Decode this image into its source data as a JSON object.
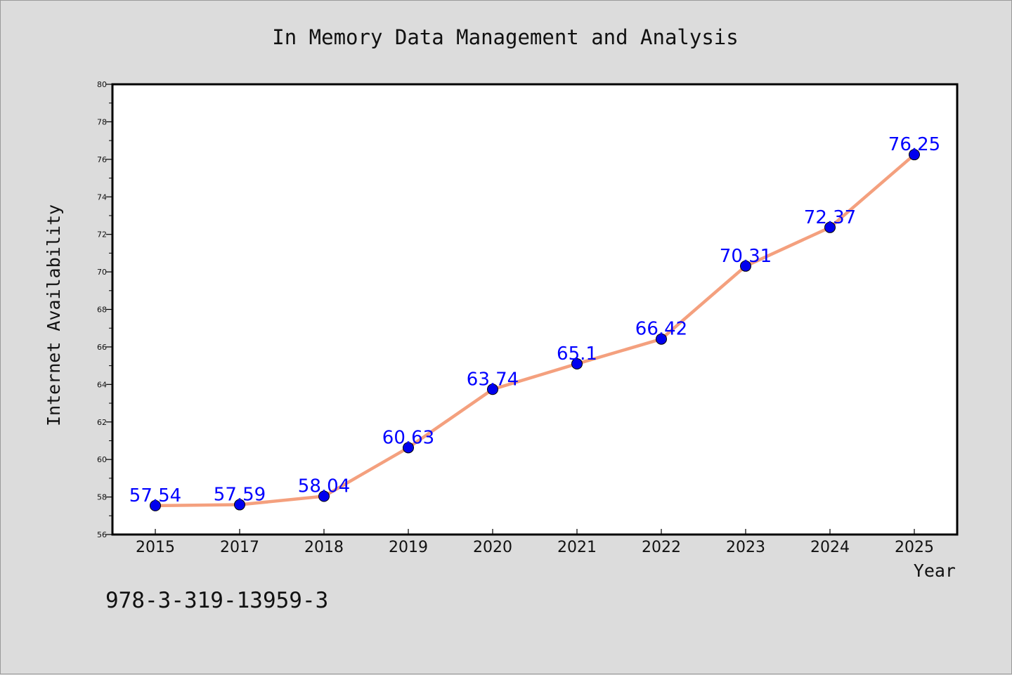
{
  "chart_data": {
    "type": "line",
    "title": "In Memory Data Management and Analysis",
    "xlabel": "Year",
    "ylabel": "Internet Availability",
    "categories": [
      "2015",
      "2017",
      "2018",
      "2019",
      "2020",
      "2021",
      "2022",
      "2023",
      "2024",
      "2025"
    ],
    "values": [
      57.54,
      57.59,
      58.04,
      60.63,
      63.74,
      65.1,
      66.42,
      70.31,
      72.37,
      76.25
    ],
    "data_labels": [
      "57.54",
      "57.59",
      "58.04",
      "60.63",
      "63.74",
      "65.1",
      "66.42",
      "70.31",
      "72.37",
      "76.25"
    ],
    "ylim": [
      56,
      80
    ],
    "yticks": [
      56,
      58,
      60,
      62,
      64,
      66,
      68,
      70,
      72,
      74,
      76,
      78,
      80
    ],
    "grid": false,
    "legend": "none",
    "line_color": "#f4a07e",
    "marker_color": "#0000ee",
    "label_color": "#0000ff",
    "background": "#dcdcdc",
    "plot_background": "#ffffff"
  },
  "footer": {
    "isbn": "978-3-319-13959-3"
  }
}
